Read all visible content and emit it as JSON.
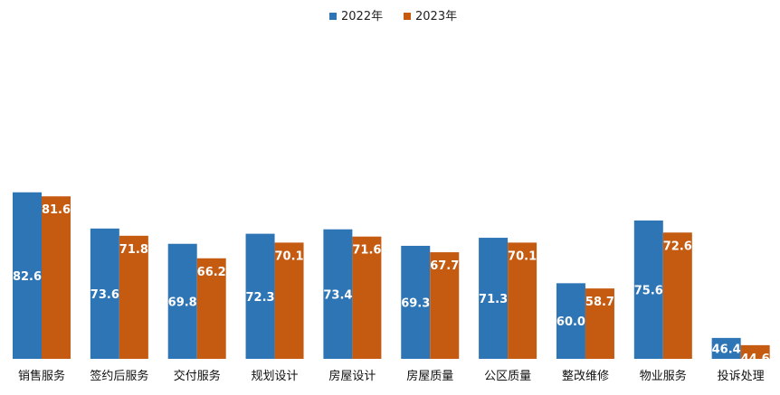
{
  "chart_data": {
    "type": "bar",
    "title": "",
    "xlabel": "",
    "ylabel": "",
    "ylim": [
      40,
      82.6
    ],
    "grid": false,
    "legend_position": "top-center",
    "categories": [
      "销售服务",
      "签约后服务",
      "交付服务",
      "规划设计",
      "房屋设计",
      "房屋质量",
      "公区质量",
      "整改维修",
      "物业服务",
      "投诉处理"
    ],
    "series": [
      {
        "name": "2022年",
        "color": "#2E75B6",
        "values": [
          82.6,
          73.6,
          69.8,
          72.3,
          73.4,
          69.3,
          71.3,
          60.0,
          75.6,
          46.4
        ],
        "labels": [
          "82.6",
          "73.6",
          "69.8",
          "72.3",
          "73.4",
          "69.3",
          "71.3",
          "60.0",
          "75.6",
          "46.4"
        ]
      },
      {
        "name": "2023年",
        "color": "#C55A11",
        "values": [
          81.6,
          71.8,
          66.2,
          70.1,
          71.6,
          67.7,
          70.1,
          58.7,
          72.6,
          44.6
        ],
        "labels": [
          "81.6",
          "71.8",
          "66.2",
          "70.1",
          "71.6",
          "67.7",
          "70.1",
          "58.7",
          "72.6",
          "44.6"
        ]
      }
    ]
  }
}
